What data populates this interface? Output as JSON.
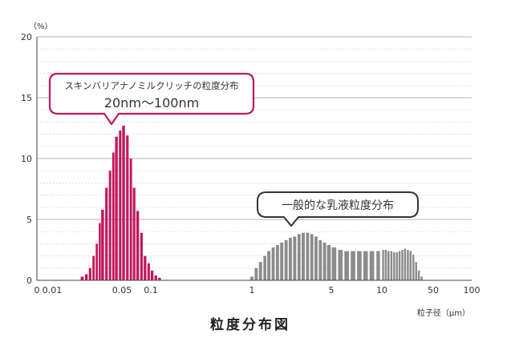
{
  "chart_data": {
    "type": "bar",
    "title": "粒度分布図",
    "y_unit_label": "（%）",
    "x_unit_label": "粒子径（μm）",
    "ylim": [
      0,
      20
    ],
    "y_ticks": [
      0,
      5,
      10,
      15,
      20
    ],
    "x_scale": "log",
    "x_range": [
      0.01,
      100
    ],
    "x_ticks": [
      {
        "label": "0",
        "value": 0.0072
      },
      {
        "label": "0.01",
        "value": 0.01
      },
      {
        "label": "0.05",
        "value": 0.05
      },
      {
        "label": "0.1",
        "value": 0.1
      },
      {
        "label": "1",
        "value": 1
      },
      {
        "label": "5",
        "value": 5
      },
      {
        "label": "10",
        "value": 10
      },
      {
        "label": "50",
        "value": 50
      },
      {
        "label": "100",
        "value": 100
      }
    ],
    "grid": true,
    "series": [
      {
        "name": "スキンバリアナノミルクリッチの粒度分布",
        "color": "#c2185b",
        "x": [
          0.02,
          0.022,
          0.024,
          0.026,
          0.028,
          0.03,
          0.032,
          0.035,
          0.038,
          0.041,
          0.044,
          0.048,
          0.052,
          0.057,
          0.062,
          0.067,
          0.073,
          0.08,
          0.087,
          0.095,
          0.103,
          0.112,
          0.122
        ],
        "values": [
          0.3,
          0.5,
          1.0,
          2.0,
          3.0,
          4.7,
          5.8,
          7.6,
          9.0,
          10.5,
          11.8,
          12.3,
          12.7,
          11.9,
          10.0,
          7.6,
          5.7,
          3.9,
          2.0,
          1.4,
          0.8,
          0.4,
          0.2
        ]
      },
      {
        "name": "一般的な乳液粒度分布",
        "color": "#8c8c8c",
        "x": [
          1.0,
          1.09,
          1.19,
          1.3,
          1.41,
          1.54,
          1.68,
          1.83,
          2.0,
          2.18,
          2.38,
          2.6,
          2.83,
          3.09,
          3.37,
          3.67,
          4.0,
          4.36,
          4.76,
          5.19,
          5.66,
          6.17,
          6.73,
          7.34,
          8.0,
          8.72,
          9.51,
          10.4,
          11.3,
          12.3,
          13.5,
          14.7,
          16.0,
          17.4,
          19.0,
          20.7,
          22.6,
          24.6,
          26.9,
          29.3,
          31.9,
          34.8
        ],
        "values": [
          0.3,
          1.0,
          1.5,
          2.0,
          2.4,
          2.7,
          2.9,
          3.1,
          3.3,
          3.5,
          3.6,
          3.8,
          3.9,
          3.9,
          3.8,
          3.6,
          3.3,
          3.1,
          2.9,
          2.7,
          2.5,
          2.4,
          2.4,
          2.4,
          2.4,
          2.4,
          2.4,
          2.5,
          2.5,
          2.4,
          2.4,
          2.3,
          2.3,
          2.4,
          2.5,
          2.6,
          2.5,
          2.4,
          2.1,
          1.5,
          0.8,
          0.3
        ]
      }
    ],
    "annotations": {
      "nano": {
        "line1": "スキンバリアナノミルクリッチの粒度分布",
        "line2": "20nm〜100nm"
      },
      "general": {
        "line1": "一般的な乳液粒度分布"
      }
    }
  },
  "colors": {
    "accent": "#c2185b",
    "gray_bars": "#8c8c8c",
    "grid": "#bbbbbb",
    "axis": "#444444"
  }
}
